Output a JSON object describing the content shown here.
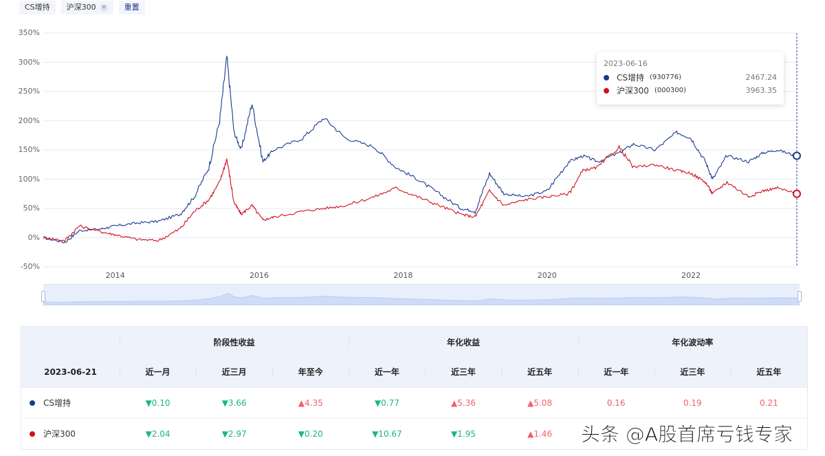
{
  "filter_bar": {
    "chips": [
      {
        "label": "CS增持",
        "closable": false
      },
      {
        "label": "沪深300",
        "closable": true
      }
    ],
    "reset_label": "重置"
  },
  "tooltip": {
    "date": "2023-06-16",
    "rows": [
      {
        "name": "CS增持",
        "code": "(930776)",
        "value": "2467.24",
        "color": "#1a3a8f"
      },
      {
        "name": "沪深300",
        "code": "(000300)",
        "value": "3963.35",
        "color": "#d0101e"
      }
    ]
  },
  "chart_data": {
    "type": "line",
    "title": "",
    "xlabel": "",
    "ylabel": "",
    "y_ticks": [
      "350%",
      "300%",
      "250%",
      "200%",
      "150%",
      "100%",
      "50%",
      "0%",
      "-50%"
    ],
    "x_ticks": [
      "2014",
      "2016",
      "2018",
      "2020",
      "2022"
    ],
    "ylim": [
      -50,
      350
    ],
    "grid": true,
    "legend_position": "none",
    "x": [
      2013.0,
      2013.3,
      2013.5,
      2013.8,
      2014.0,
      2014.3,
      2014.6,
      2014.9,
      2015.1,
      2015.3,
      2015.45,
      2015.55,
      2015.65,
      2015.75,
      2015.9,
      2016.05,
      2016.2,
      2016.6,
      2016.9,
      2017.2,
      2017.6,
      2017.9,
      2018.2,
      2018.5,
      2018.8,
      2019.0,
      2019.2,
      2019.4,
      2019.7,
      2020.0,
      2020.3,
      2020.5,
      2020.7,
      2021.0,
      2021.2,
      2021.5,
      2021.8,
      2022.0,
      2022.2,
      2022.3,
      2022.5,
      2022.8,
      2023.0,
      2023.2,
      2023.46
    ],
    "series": [
      {
        "name": "CS增持",
        "code": "930776",
        "color": "#1a3a8f",
        "values": [
          0,
          -8,
          12,
          15,
          20,
          25,
          28,
          40,
          70,
          120,
          200,
          310,
          180,
          150,
          230,
          130,
          150,
          170,
          205,
          170,
          155,
          120,
          100,
          75,
          50,
          45,
          110,
          75,
          70,
          80,
          130,
          140,
          130,
          145,
          160,
          150,
          180,
          170,
          130,
          100,
          140,
          130,
          145,
          150,
          140
        ]
      },
      {
        "name": "沪深300",
        "code": "000300",
        "color": "#d0101e",
        "values": [
          0,
          -5,
          20,
          10,
          5,
          -3,
          -5,
          15,
          45,
          65,
          95,
          135,
          60,
          40,
          55,
          30,
          35,
          45,
          50,
          55,
          70,
          85,
          70,
          55,
          40,
          35,
          80,
          55,
          65,
          70,
          75,
          115,
          120,
          155,
          120,
          125,
          115,
          110,
          95,
          75,
          95,
          70,
          80,
          85,
          75
        ]
      }
    ],
    "crosshair_date": "2023-06-16"
  },
  "table": {
    "date": "2023-06-21",
    "groups": [
      "阶段性收益",
      "年化收益",
      "年化波动率"
    ],
    "columns": [
      "近一月",
      "近三月",
      "年至今",
      "近一年",
      "近三年",
      "近五年",
      "近一年",
      "近三年",
      "近五年"
    ],
    "rows": [
      {
        "name": "CS增持",
        "color": "#1a3a8f",
        "cells": [
          {
            "text": "▼0.10",
            "trend": "down"
          },
          {
            "text": "▼3.66",
            "trend": "down"
          },
          {
            "text": "▲4.35",
            "trend": "up"
          },
          {
            "text": "▼0.77",
            "trend": "down"
          },
          {
            "text": "▲5.36",
            "trend": "up"
          },
          {
            "text": "▲5.08",
            "trend": "up"
          },
          {
            "text": "0.16",
            "trend": "up"
          },
          {
            "text": "0.19",
            "trend": "up"
          },
          {
            "text": "0.21",
            "trend": "up"
          }
        ]
      },
      {
        "name": "沪深300",
        "color": "#d0101e",
        "cells": [
          {
            "text": "▼2.04",
            "trend": "down"
          },
          {
            "text": "▼2.97",
            "trend": "down"
          },
          {
            "text": "▼0.20",
            "trend": "down"
          },
          {
            "text": "▼10.67",
            "trend": "down"
          },
          {
            "text": "▼1.95",
            "trend": "down"
          },
          {
            "text": "▲1.46",
            "trend": "up"
          },
          {
            "text": "",
            "trend": "up"
          },
          {
            "text": "",
            "trend": "up"
          },
          {
            "text": "",
            "trend": "up"
          }
        ]
      }
    ]
  },
  "watermark": "头条 @A股首席亏钱专家",
  "colors": {
    "up": "#f0606b",
    "down": "#1db488",
    "header_bg": "#eef2fb"
  }
}
